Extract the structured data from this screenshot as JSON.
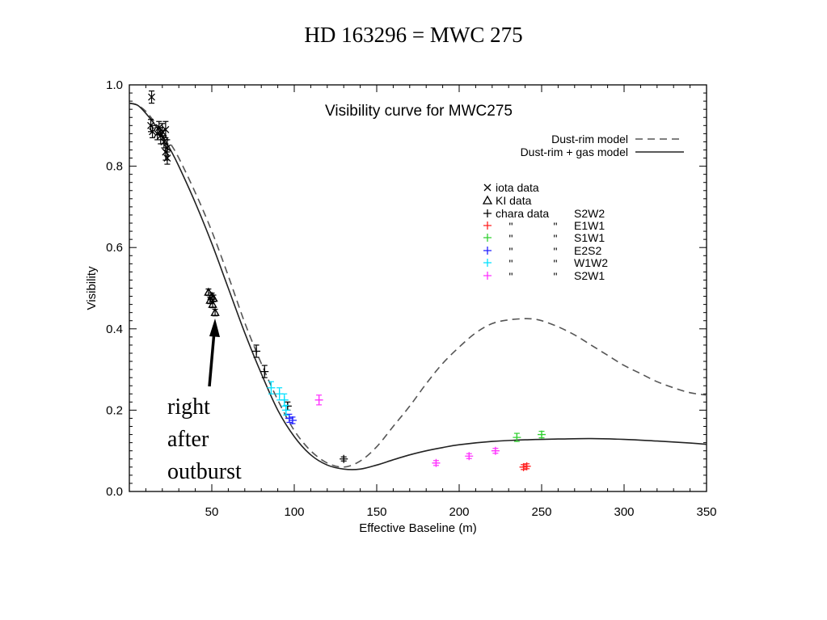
{
  "slide": {
    "title": "HD 163296 = MWC 275",
    "annotation_lines": [
      "right",
      "after",
      "outburst"
    ]
  },
  "chart_data": {
    "type": "scatter",
    "title": "Visibility curve for MWC275",
    "xlabel": "Effective Baseline (m)",
    "ylabel": "Visibility",
    "xlim": [
      0,
      350
    ],
    "ylim": [
      0,
      1.0
    ],
    "xticks": [
      50,
      100,
      150,
      200,
      250,
      300,
      350
    ],
    "yticks": [
      0.0,
      0.2,
      0.4,
      0.6,
      0.8,
      1.0
    ],
    "ytick_labels": [
      "0.0",
      "0.2",
      "0.4",
      "0.6",
      "0.8",
      "1.0"
    ],
    "grid": false,
    "legend_position": "top-right",
    "model_legend": [
      {
        "label": "Dust-rim model",
        "style": "dashed"
      },
      {
        "label": "Dust-rim + gas model",
        "style": "solid"
      }
    ],
    "marker_legend": [
      {
        "symbol": "×",
        "label": "iota data"
      },
      {
        "symbol": "△",
        "label": "KI data"
      },
      {
        "symbol": "+",
        "label": "chara data"
      }
    ],
    "baseline_legend": [
      {
        "label": "S2W2",
        "color": "#000000",
        "ditto": false
      },
      {
        "label": "E1W1",
        "color": "#ff2020",
        "ditto": true
      },
      {
        "label": "S1W1",
        "color": "#30d030",
        "ditto": true
      },
      {
        "label": "E2S2",
        "color": "#2020ff",
        "ditto": true
      },
      {
        "label": "W1W2",
        "color": "#00e0ff",
        "ditto": true
      },
      {
        "label": "S2W1",
        "color": "#ff30ff",
        "ditto": true
      }
    ],
    "ditto_mark": "\"",
    "models": [
      {
        "name": "Dust-rim model",
        "style": "dashed",
        "x": [
          0,
          5,
          10,
          15,
          20,
          25,
          30,
          40,
          50,
          60,
          70,
          80,
          90,
          100,
          110,
          120,
          130,
          140,
          150,
          160,
          170,
          180,
          190,
          200,
          210,
          220,
          230,
          240,
          245,
          250,
          260,
          270,
          280,
          290,
          300,
          310,
          320,
          330,
          340,
          350
        ],
        "y": [
          0.955,
          0.95,
          0.935,
          0.91,
          0.885,
          0.855,
          0.82,
          0.735,
          0.64,
          0.53,
          0.415,
          0.315,
          0.225,
          0.15,
          0.1,
          0.07,
          0.06,
          0.075,
          0.11,
          0.16,
          0.21,
          0.265,
          0.315,
          0.355,
          0.39,
          0.413,
          0.422,
          0.425,
          0.424,
          0.42,
          0.405,
          0.385,
          0.36,
          0.335,
          0.31,
          0.29,
          0.27,
          0.255,
          0.243,
          0.237
        ]
      },
      {
        "name": "Dust-rim + gas model",
        "style": "solid",
        "x": [
          0,
          5,
          10,
          15,
          20,
          25,
          30,
          40,
          50,
          60,
          70,
          80,
          90,
          100,
          110,
          120,
          130,
          140,
          150,
          160,
          170,
          180,
          190,
          200,
          220,
          240,
          260,
          280,
          300,
          320,
          340,
          350
        ],
        "y": [
          0.955,
          0.95,
          0.93,
          0.905,
          0.875,
          0.84,
          0.8,
          0.71,
          0.61,
          0.5,
          0.39,
          0.29,
          0.2,
          0.135,
          0.09,
          0.065,
          0.055,
          0.055,
          0.065,
          0.078,
          0.09,
          0.1,
          0.108,
          0.115,
          0.123,
          0.127,
          0.129,
          0.13,
          0.128,
          0.124,
          0.119,
          0.116
        ]
      }
    ],
    "series": [
      {
        "name": "iota data",
        "marker": "x",
        "color": "#000000",
        "points": [
          [
            13,
            0.9,
            0.015
          ],
          [
            14,
            0.885,
            0.015
          ],
          [
            13.5,
            0.97,
            0.015
          ],
          [
            17,
            0.88,
            0.015
          ],
          [
            18,
            0.895,
            0.015
          ],
          [
            19,
            0.875,
            0.02
          ],
          [
            20,
            0.885,
            0.02
          ],
          [
            21,
            0.86,
            0.015
          ],
          [
            22,
            0.89,
            0.02
          ],
          [
            22,
            0.835,
            0.02
          ],
          [
            23,
            0.845,
            0.02
          ],
          [
            23,
            0.82,
            0.015
          ]
        ]
      },
      {
        "name": "KI data",
        "marker": "triangle",
        "color": "#000000",
        "points": [
          [
            48,
            0.49,
            0.008
          ],
          [
            49,
            0.47,
            0.008
          ],
          [
            50,
            0.48,
            0.008
          ],
          [
            50.5,
            0.46,
            0.008
          ],
          [
            51,
            0.475,
            0.008
          ],
          [
            52,
            0.44,
            0.008
          ]
        ]
      },
      {
        "name": "S2W2",
        "marker": "+",
        "color": "#000000",
        "points": [
          [
            77,
            0.345,
            0.015
          ],
          [
            82,
            0.295,
            0.015
          ],
          [
            96,
            0.21,
            0.01
          ],
          [
            130,
            0.08,
            0.005
          ]
        ]
      },
      {
        "name": "E1W1",
        "marker": "+",
        "color": "#ff2020",
        "points": [
          [
            239,
            0.06,
            0.006
          ],
          [
            241,
            0.062,
            0.006
          ]
        ]
      },
      {
        "name": "S1W1",
        "marker": "+",
        "color": "#30d030",
        "points": [
          [
            235,
            0.133,
            0.01
          ],
          [
            250,
            0.14,
            0.008
          ]
        ]
      },
      {
        "name": "E2S2",
        "marker": "+",
        "color": "#2020ff",
        "points": [
          [
            97,
            0.18,
            0.01
          ],
          [
            99,
            0.175,
            0.008
          ]
        ]
      },
      {
        "name": "W1W2",
        "marker": "+",
        "color": "#00e0ff",
        "points": [
          [
            86,
            0.255,
            0.015
          ],
          [
            91,
            0.24,
            0.015
          ],
          [
            94,
            0.225,
            0.015
          ],
          [
            95,
            0.2,
            0.012
          ]
        ]
      },
      {
        "name": "S2W1",
        "marker": "+",
        "color": "#ff30ff",
        "points": [
          [
            115,
            0.225,
            0.012
          ],
          [
            186,
            0.07,
            0.006
          ],
          [
            206,
            0.087,
            0.006
          ],
          [
            222,
            0.1,
            0.006
          ]
        ]
      }
    ]
  }
}
